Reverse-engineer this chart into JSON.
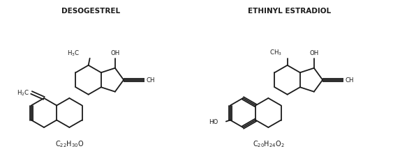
{
  "bg_color": "#ffffff",
  "line_color": "#1a1a1a",
  "lw": 1.3,
  "title1": "DESOGESTREL",
  "title2": "ETHINYL ESTRADIOL",
  "formula1": "C$_{22}$H$_{30}$O",
  "formula2": "C$_{20}$H$_{24}$O$_{2}$",
  "title_fs": 7.5,
  "label_fs": 6.2,
  "formula_fs": 7.0
}
